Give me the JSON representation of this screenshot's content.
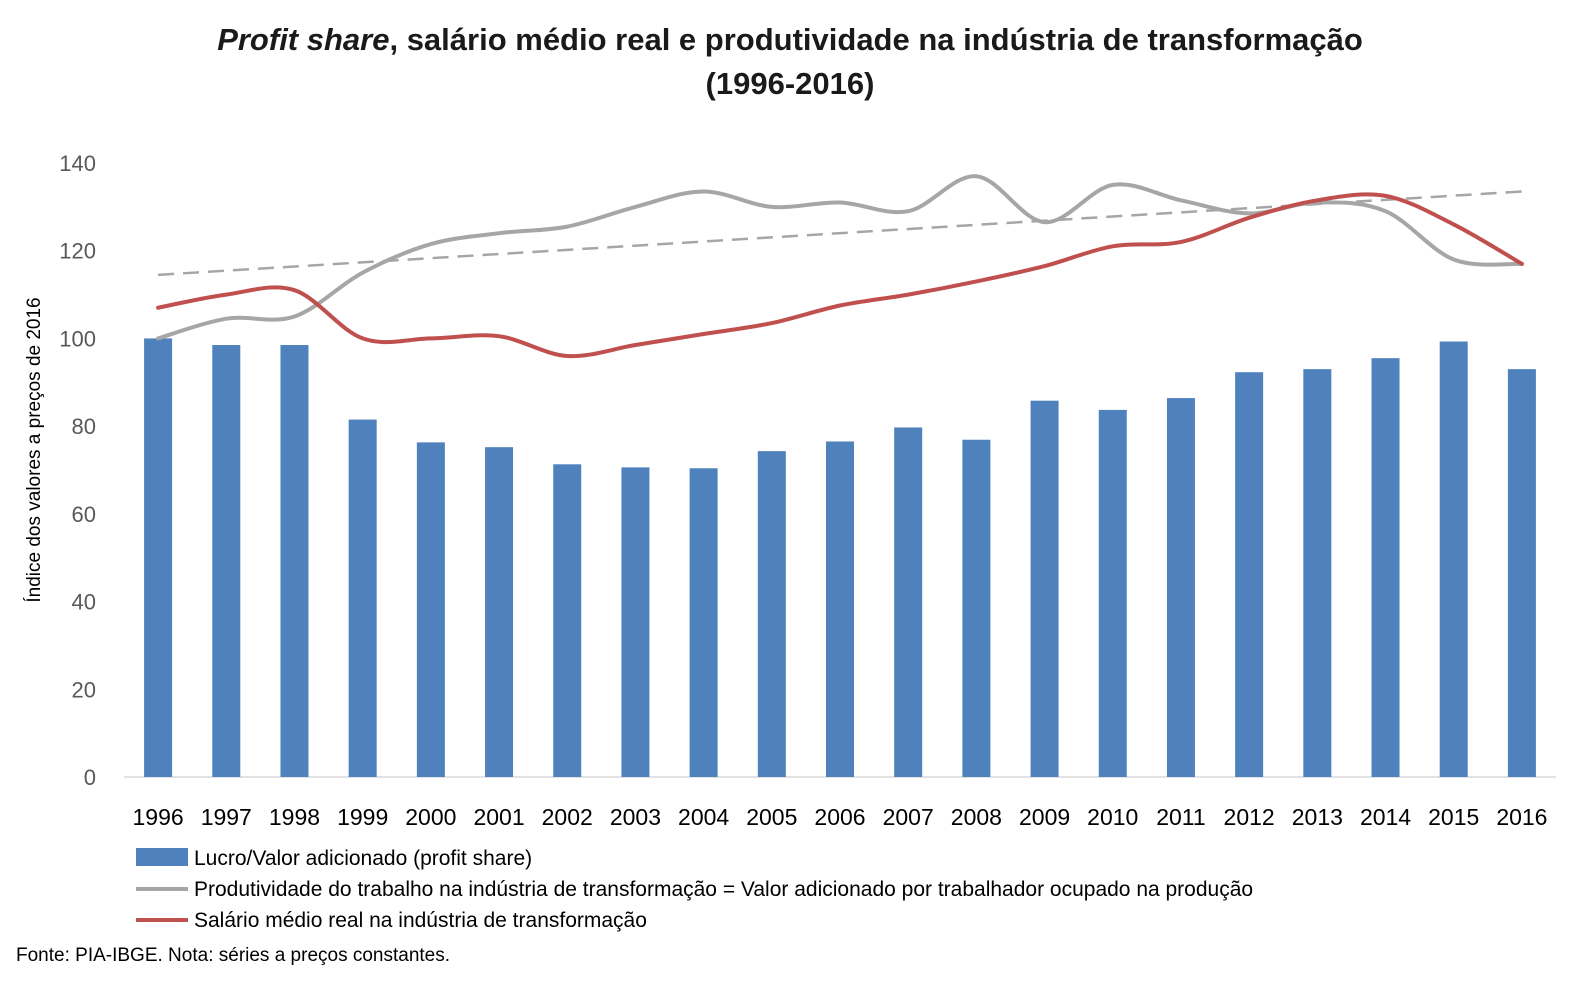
{
  "title": {
    "italic_part": "Profit share",
    "rest_part": ", salário médio real e produtividade na indústria de transformação",
    "line2": "(1996-2016)"
  },
  "chart_data": {
    "type": "bar",
    "categories": [
      "1996",
      "1997",
      "1998",
      "1999",
      "2000",
      "2001",
      "2002",
      "2003",
      "2004",
      "2005",
      "2006",
      "2007",
      "2008",
      "2009",
      "2010",
      "2011",
      "2012",
      "2013",
      "2014",
      "2015",
      "2016"
    ],
    "ylabel": "Índice dos valores a preços de 2016",
    "ylim": [
      0,
      140
    ],
    "yticks": [
      0,
      20,
      40,
      60,
      80,
      100,
      120,
      140
    ],
    "grid": false,
    "legend_position": "bottom",
    "series": [
      {
        "name": "Lucro/Valor adicionado (profit share)",
        "type": "bar",
        "color": "#4f81bd",
        "values": [
          100,
          98.5,
          98.5,
          81.5,
          76.3,
          75.2,
          71.3,
          70.6,
          70.4,
          74.3,
          76.5,
          79.7,
          76.9,
          85.8,
          83.7,
          86.4,
          92.3,
          93.0,
          95.5,
          99.3,
          93.0
        ]
      },
      {
        "name": "Produtividade do trabalho na indústria de transformação = Valor adicionado por trabalhador ocupado na produção",
        "type": "line",
        "color": "#a6a6a6",
        "values": [
          100,
          104.5,
          105,
          115,
          121.5,
          124,
          125.5,
          130,
          133.5,
          130,
          131,
          129,
          137,
          126.5,
          135,
          131.5,
          128.5,
          131,
          129,
          118,
          117
        ]
      },
      {
        "name": "Salário médio real na indústria de transformação",
        "type": "line",
        "color": "#c0504d",
        "values": [
          107,
          110,
          111,
          100,
          100,
          100.5,
          96,
          98.5,
          101,
          103.5,
          107.5,
          110,
          113,
          116.5,
          121,
          122,
          127.5,
          131.5,
          132.5,
          126,
          117
        ]
      }
    ],
    "trendline": {
      "of_series": "Produtividade do trabalho na indústria de transformação = Valor adicionado por trabalhador ocupado na produção",
      "style": "dashed",
      "color": "#a6a6a6",
      "start": 114.5,
      "end": 133.5
    }
  },
  "footnote": "Fonte: PIA-IBGE. Nota: séries a preços constantes."
}
